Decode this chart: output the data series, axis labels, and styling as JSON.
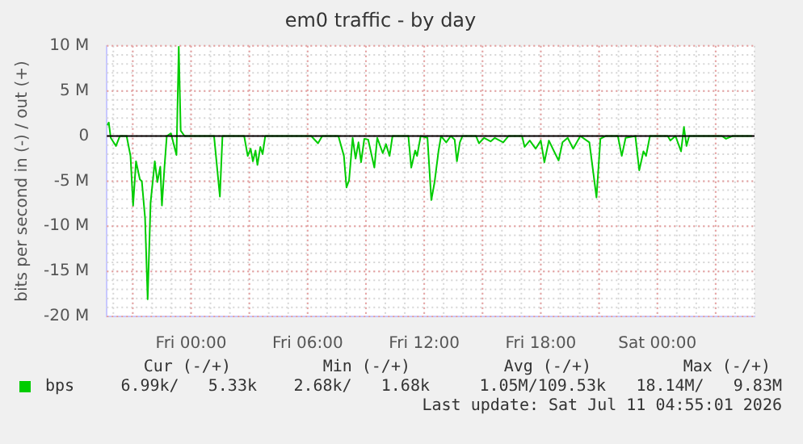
{
  "chart_data": {
    "type": "line",
    "title": "em0 traffic - by day",
    "ylabel": "bits per second in (-) / out (+)",
    "x": [
      "2026-07-09T19:41",
      "2026-07-09T19:46",
      "2026-07-09T19:52",
      "2026-07-09T20:08",
      "2026-07-09T20:20",
      "2026-07-09T20:41",
      "2026-07-09T20:53",
      "2026-07-09T21:01",
      "2026-07-09T21:10",
      "2026-07-09T21:22",
      "2026-07-09T21:28",
      "2026-07-09T21:38",
      "2026-07-09T21:46",
      "2026-07-09T21:55",
      "2026-07-09T22:08",
      "2026-07-09T22:16",
      "2026-07-09T22:25",
      "2026-07-09T22:30",
      "2026-07-09T22:38",
      "2026-07-09T22:45",
      "2026-07-09T22:58",
      "2026-07-09T23:10",
      "2026-07-09T23:15",
      "2026-07-09T23:22",
      "2026-07-09T23:28",
      "2026-07-09T23:40",
      "2026-07-10T01:11",
      "2026-07-10T01:29",
      "2026-07-10T01:37",
      "2026-07-10T02:44",
      "2026-07-10T02:55",
      "2026-07-10T03:04",
      "2026-07-10T03:11",
      "2026-07-10T03:19",
      "2026-07-10T03:25",
      "2026-07-10T03:34",
      "2026-07-10T03:41",
      "2026-07-10T03:49",
      "2026-07-10T06:11",
      "2026-07-10T06:32",
      "2026-07-10T06:45",
      "2026-07-10T07:35",
      "2026-07-10T07:52",
      "2026-07-10T08:00",
      "2026-07-10T08:08",
      "2026-07-10T08:19",
      "2026-07-10T08:28",
      "2026-07-10T08:37",
      "2026-07-10T08:45",
      "2026-07-10T08:55",
      "2026-07-10T09:07",
      "2026-07-10T09:26",
      "2026-07-10T09:35",
      "2026-07-10T09:52",
      "2026-07-10T10:02",
      "2026-07-10T10:13",
      "2026-07-10T10:22",
      "2026-07-10T11:11",
      "2026-07-10T11:20",
      "2026-07-10T11:32",
      "2026-07-10T11:38",
      "2026-07-10T11:49",
      "2026-07-10T12:10",
      "2026-07-10T12:22",
      "2026-07-10T12:32",
      "2026-07-10T12:44",
      "2026-07-10T12:52",
      "2026-07-10T13:08",
      "2026-07-10T13:22",
      "2026-07-10T13:34",
      "2026-07-10T13:41",
      "2026-07-10T13:50",
      "2026-07-10T13:58",
      "2026-07-10T14:40",
      "2026-07-10T14:49",
      "2026-07-10T15:05",
      "2026-07-10T15:25",
      "2026-07-10T15:38",
      "2026-07-10T16:04",
      "2026-07-10T16:20",
      "2026-07-10T17:02",
      "2026-07-10T17:10",
      "2026-07-10T17:26",
      "2026-07-10T17:44",
      "2026-07-10T18:00",
      "2026-07-10T18:11",
      "2026-07-10T18:25",
      "2026-07-10T18:41",
      "2026-07-10T18:55",
      "2026-07-10T19:07",
      "2026-07-10T19:23",
      "2026-07-10T19:40",
      "2026-07-10T20:02",
      "2026-07-10T20:30",
      "2026-07-10T20:52",
      "2026-07-10T21:04",
      "2026-07-10T21:20",
      "2026-07-10T21:58",
      "2026-07-10T22:10",
      "2026-07-10T22:22",
      "2026-07-10T22:52",
      "2026-07-10T23:04",
      "2026-07-10T23:17",
      "2026-07-10T23:25",
      "2026-07-10T23:37",
      "2026-07-11T00:32",
      "2026-07-11T00:40",
      "2026-07-11T00:56",
      "2026-07-11T01:13",
      "2026-07-11T01:22",
      "2026-07-11T01:30",
      "2026-07-11T01:38",
      "2026-07-11T03:19",
      "2026-07-11T03:32",
      "2026-07-11T03:52",
      "2026-07-11T04:52"
    ],
    "series": [
      {
        "name": "bps",
        "color": "#00cc00",
        "values": [
          1.2,
          1.5,
          -0.2,
          -1.1,
          0,
          0,
          -2.2,
          -7.7,
          -2.8,
          -4.8,
          -5,
          -9.1,
          -18.1,
          -7.4,
          -2.8,
          -5.1,
          -3.4,
          -7.7,
          -3.4,
          0,
          0.3,
          -1.4,
          -2.1,
          9.9,
          0.6,
          0,
          0,
          -6.7,
          0,
          0,
          -2.2,
          -1.4,
          -2.8,
          -1.6,
          -3.2,
          -1.2,
          -2,
          0,
          0,
          -0.8,
          0,
          0,
          -2.2,
          -5.7,
          -4.9,
          -0.2,
          -2.5,
          -0.7,
          -2.9,
          -0.3,
          -0.4,
          -3.5,
          -0.2,
          -1.9,
          -0.9,
          -2.2,
          0,
          0,
          -3.5,
          -1.6,
          -2.2,
          0,
          -0.2,
          -7.1,
          -5.1,
          -1.7,
          0,
          -0.7,
          0,
          -0.4,
          -2.8,
          -0.7,
          0,
          0,
          -0.8,
          -0.2,
          -0.6,
          -0.2,
          -0.7,
          0,
          0,
          -1.2,
          -0.5,
          -1.4,
          -0.5,
          -2.9,
          -0.5,
          -1.7,
          -2.7,
          -0.7,
          -0.2,
          -1.4,
          0,
          -0.7,
          -6.8,
          -0.3,
          0,
          0,
          -2.2,
          -0.2,
          0,
          -3.8,
          -1.7,
          -2.2,
          0,
          0,
          -0.5,
          0,
          -1.7,
          1.0,
          -1.1,
          0,
          0,
          -0.3,
          0,
          0
        ]
      }
    ],
    "xlim": [
      "2026-07-09T19:40",
      "2026-07-11T05:00"
    ],
    "xticks": [
      {
        "value": "2026-07-09T21:00",
        "label": null
      },
      {
        "value": "2026-07-10T00:00",
        "label": "Fri 00:00"
      },
      {
        "value": "2026-07-10T03:00",
        "label": null
      },
      {
        "value": "2026-07-10T06:00",
        "label": "Fri 06:00"
      },
      {
        "value": "2026-07-10T09:00",
        "label": null
      },
      {
        "value": "2026-07-10T12:00",
        "label": "Fri 12:00"
      },
      {
        "value": "2026-07-10T15:00",
        "label": null
      },
      {
        "value": "2026-07-10T18:00",
        "label": "Fri 18:00"
      },
      {
        "value": "2026-07-10T21:00",
        "label": null
      },
      {
        "value": "2026-07-11T00:00",
        "label": "Sat 00:00"
      },
      {
        "value": "2026-07-11T03:00",
        "label": null
      }
    ],
    "ylim": [
      -20,
      10
    ],
    "yticks": [
      {
        "value": -20,
        "label": "-20 M"
      },
      {
        "value": -15,
        "label": "-15 M"
      },
      {
        "value": -10,
        "label": "-10 M"
      },
      {
        "value": -5,
        "label": "-5 M"
      },
      0,
      {
        "value": 5,
        "label": "5 M"
      },
      {
        "value": 10,
        "label": "10 M"
      }
    ],
    "ref_lines": [
      {
        "axis": "y",
        "value": 0,
        "label": null,
        "color": "#000000"
      }
    ],
    "grid": true,
    "legend": "bottom left",
    "marker": "none",
    "line_style": "solid",
    "annotations": [
      "Cur (-/+)",
      "Min (-/+)",
      "Avg (-/+)",
      "Max (-/+)",
      "6.99k/   5.33k",
      "2.68k/   1.68k",
      "1.05M/109.53k",
      "18.14M/   9.83M",
      "Last update: Sat Jul 11 04:55:01 2026"
    ]
  }
}
